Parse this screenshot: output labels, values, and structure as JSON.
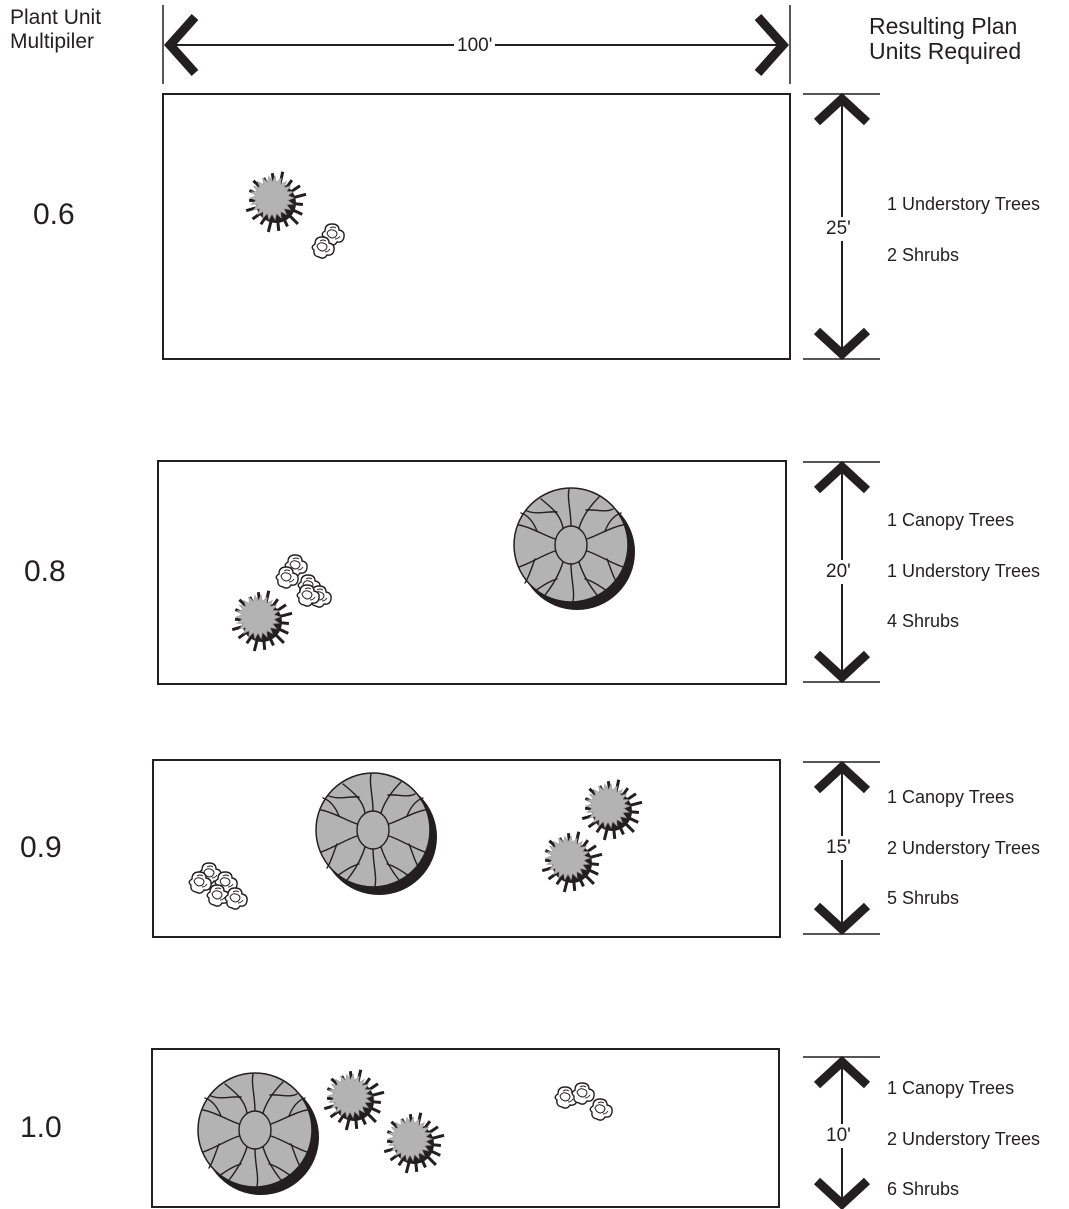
{
  "header": {
    "left_line1": "Plant Unit",
    "left_line2": "Multipiler",
    "right_line1": "Resulting Plan",
    "right_line2": "Units Required",
    "width_label": "100'"
  },
  "colors": {
    "line": "#231f20",
    "canopy_fill": "#b3b3b3",
    "shrub_fill": "#ffffff",
    "shadow": "#231f20"
  },
  "icons": [
    "canopy-tree-icon",
    "understory-tree-icon",
    "shrub-cluster-icon",
    "dimension-arrow-icon"
  ],
  "rows": [
    {
      "multiplier": "0.6",
      "depth": "25'",
      "requirements": [
        "1 Understory Trees",
        "2 Shrubs"
      ],
      "counts": {
        "canopy": 0,
        "understory": 1,
        "shrubs": 2
      }
    },
    {
      "multiplier": "0.8",
      "depth": "20'",
      "requirements": [
        "1 Canopy Trees",
        "1 Understory Trees",
        "4 Shrubs"
      ],
      "counts": {
        "canopy": 1,
        "understory": 1,
        "shrubs": 4
      }
    },
    {
      "multiplier": "0.9",
      "depth": "15'",
      "requirements": [
        "1 Canopy Trees",
        "2 Understory Trees",
        "5 Shrubs"
      ],
      "counts": {
        "canopy": 1,
        "understory": 2,
        "shrubs": 5
      }
    },
    {
      "multiplier": "1.0",
      "depth": "10'",
      "requirements": [
        "1 Canopy Trees",
        "2 Understory Trees",
        "6 Shrubs"
      ],
      "counts": {
        "canopy": 1,
        "understory": 2,
        "shrubs": 6
      }
    }
  ]
}
